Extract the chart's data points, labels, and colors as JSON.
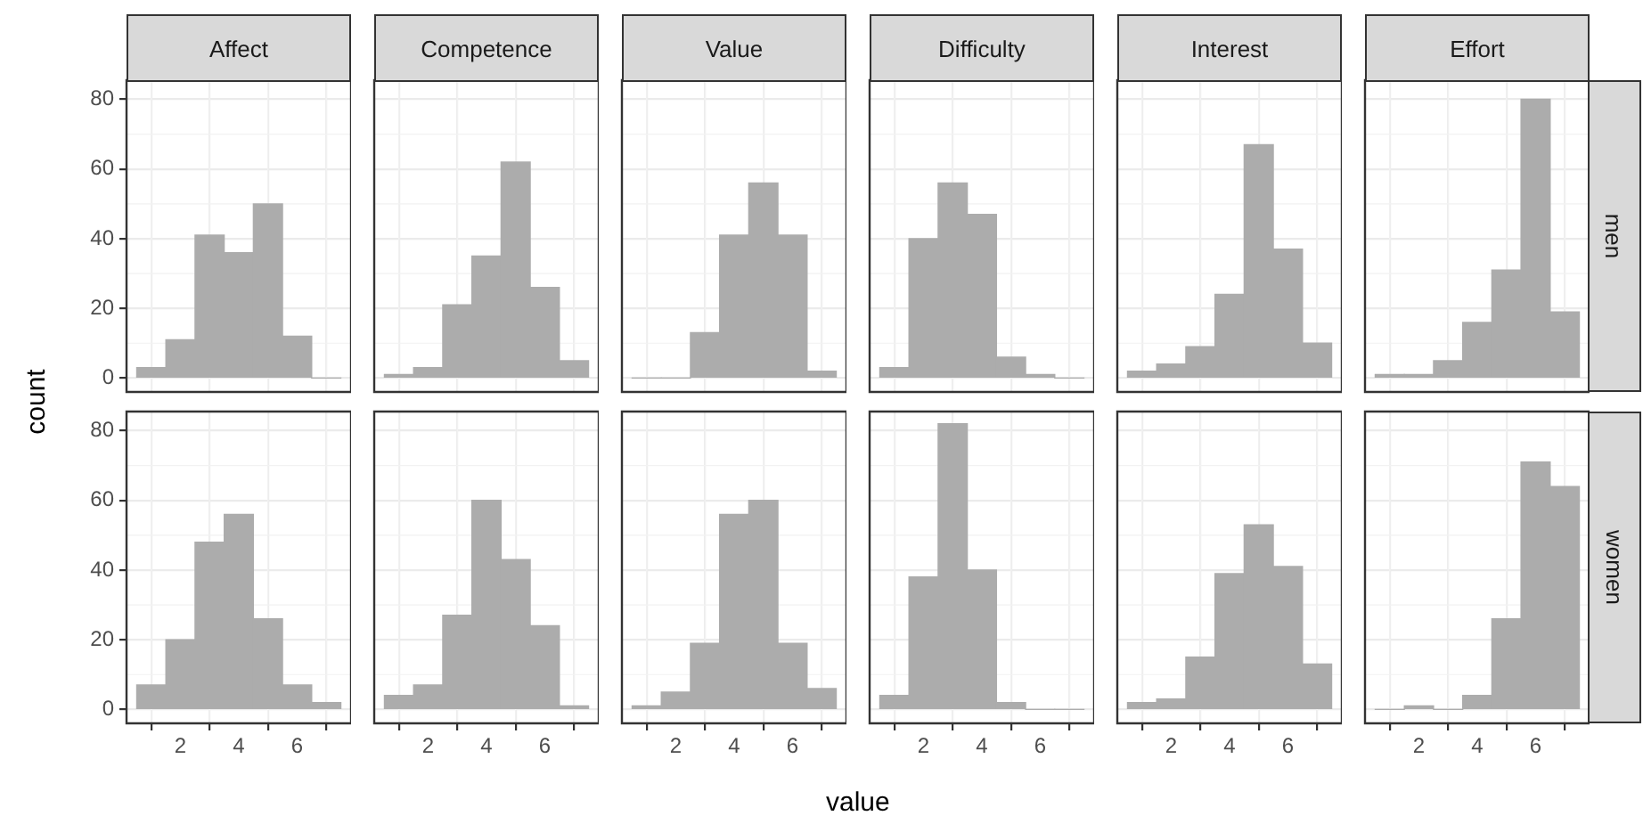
{
  "chart_data": [
    {
      "type": "histogram",
      "title": "Affect",
      "ylabel": "count",
      "bins": [
        0.5,
        1.5,
        2.5,
        3.5,
        4.5,
        5.5,
        6.5,
        7.5
      ],
      "values": [
        3,
        11,
        41,
        36,
        50,
        12,
        0
      ],
      "color": "#acacac",
      "xlim": [
        0.15,
        7.85
      ],
      "xticks": [
        2,
        4,
        6
      ],
      "ylim": [
        -4,
        85.5
      ],
      "yticks": [
        0,
        20,
        40,
        60,
        80
      ],
      "grid": true,
      "legend": false,
      "tick_labels": "y"
    },
    {
      "type": "histogram",
      "title": "Competence",
      "bins": [
        0.5,
        1.5,
        2.5,
        3.5,
        4.5,
        5.5,
        6.5,
        7.5
      ],
      "values": [
        1,
        3,
        21,
        35,
        62,
        26,
        5
      ],
      "color": "#acacac",
      "xlim": [
        0.15,
        7.85
      ],
      "xticks": [
        2,
        4,
        6
      ],
      "ylim": [
        -4,
        85.5
      ],
      "yticks": [
        0,
        20,
        40,
        60,
        80
      ],
      "grid": true,
      "legend": false,
      "tick_labels": false
    },
    {
      "type": "histogram",
      "title": "Value",
      "bins": [
        0.5,
        1.5,
        2.5,
        3.5,
        4.5,
        5.5,
        6.5,
        7.5
      ],
      "values": [
        0,
        0,
        13,
        41,
        56,
        41,
        2
      ],
      "color": "#acacac",
      "xlim": [
        0.15,
        7.85
      ],
      "xticks": [
        2,
        4,
        6
      ],
      "ylim": [
        -4,
        85.5
      ],
      "yticks": [
        0,
        20,
        40,
        60,
        80
      ],
      "grid": true,
      "legend": false,
      "tick_labels": false
    },
    {
      "type": "histogram",
      "title": "Difficulty",
      "bins": [
        0.5,
        1.5,
        2.5,
        3.5,
        4.5,
        5.5,
        6.5,
        7.5
      ],
      "values": [
        3,
        40,
        56,
        47,
        6,
        1,
        0
      ],
      "color": "#acacac",
      "xlim": [
        0.15,
        7.85
      ],
      "xticks": [
        2,
        4,
        6
      ],
      "ylim": [
        -4,
        85.5
      ],
      "yticks": [
        0,
        20,
        40,
        60,
        80
      ],
      "grid": true,
      "legend": false,
      "tick_labels": false
    },
    {
      "type": "histogram",
      "title": "Interest",
      "bins": [
        0.5,
        1.5,
        2.5,
        3.5,
        4.5,
        5.5,
        6.5,
        7.5
      ],
      "values": [
        2,
        4,
        9,
        24,
        67,
        37,
        10
      ],
      "color": "#acacac",
      "xlim": [
        0.15,
        7.85
      ],
      "xticks": [
        2,
        4,
        6
      ],
      "ylim": [
        -4,
        85.5
      ],
      "yticks": [
        0,
        20,
        40,
        60,
        80
      ],
      "grid": true,
      "legend": false,
      "tick_labels": false
    },
    {
      "type": "histogram",
      "title": "Effort",
      "y2label": "men",
      "bins": [
        0.5,
        1.5,
        2.5,
        3.5,
        4.5,
        5.5,
        6.5,
        7.5
      ],
      "values": [
        1,
        1,
        5,
        16,
        31,
        80,
        19
      ],
      "color": "#acacac",
      "xlim": [
        0.15,
        7.85
      ],
      "xticks": [
        2,
        4,
        6
      ],
      "ylim": [
        -4,
        85.5
      ],
      "yticks": [
        0,
        20,
        40,
        60,
        80
      ],
      "grid": true,
      "legend": false,
      "tick_labels": false
    },
    {
      "type": "histogram",
      "bins": [
        0.5,
        1.5,
        2.5,
        3.5,
        4.5,
        5.5,
        6.5,
        7.5
      ],
      "values": [
        7,
        20,
        48,
        56,
        26,
        7,
        2
      ],
      "color": "#acacac",
      "xlim": [
        0.15,
        7.85
      ],
      "xticks": [
        2,
        4,
        6
      ],
      "ylim": [
        -4,
        85.5
      ],
      "yticks": [
        0,
        20,
        40,
        60,
        80
      ],
      "grid": true,
      "legend": false
    },
    {
      "type": "histogram",
      "bins": [
        0.5,
        1.5,
        2.5,
        3.5,
        4.5,
        5.5,
        6.5,
        7.5
      ],
      "values": [
        4,
        7,
        27,
        60,
        43,
        24,
        1
      ],
      "color": "#acacac",
      "xlim": [
        0.15,
        7.85
      ],
      "xticks": [
        2,
        4,
        6
      ],
      "ylim": [
        -4,
        85.5
      ],
      "yticks": [
        0,
        20,
        40,
        60,
        80
      ],
      "grid": true,
      "legend": false,
      "tick_labels": "x"
    },
    {
      "type": "histogram",
      "xlabel": "value",
      "bins": [
        0.5,
        1.5,
        2.5,
        3.5,
        4.5,
        5.5,
        6.5,
        7.5
      ],
      "values": [
        1,
        5,
        19,
        56,
        60,
        19,
        6
      ],
      "color": "#acacac",
      "xlim": [
        0.15,
        7.85
      ],
      "xticks": [
        2,
        4,
        6
      ],
      "ylim": [
        -4,
        85.5
      ],
      "yticks": [
        0,
        20,
        40,
        60,
        80
      ],
      "grid": true,
      "legend": false,
      "tick_labels": "x"
    },
    {
      "type": "histogram",
      "bins": [
        0.5,
        1.5,
        2.5,
        3.5,
        4.5,
        5.5,
        6.5,
        7.5
      ],
      "values": [
        4,
        38,
        82,
        40,
        2,
        0,
        0
      ],
      "color": "#acacac",
      "xlim": [
        0.15,
        7.85
      ],
      "xticks": [
        2,
        4,
        6
      ],
      "ylim": [
        -4,
        85.5
      ],
      "yticks": [
        0,
        20,
        40,
        60,
        80
      ],
      "grid": true,
      "legend": false,
      "tick_labels": "x"
    },
    {
      "type": "histogram",
      "bins": [
        0.5,
        1.5,
        2.5,
        3.5,
        4.5,
        5.5,
        6.5,
        7.5
      ],
      "values": [
        2,
        3,
        15,
        39,
        53,
        41,
        13
      ],
      "color": "#acacac",
      "xlim": [
        0.15,
        7.85
      ],
      "xticks": [
        2,
        4,
        6
      ],
      "ylim": [
        -4,
        85.5
      ],
      "yticks": [
        0,
        20,
        40,
        60,
        80
      ],
      "grid": true,
      "legend": false,
      "tick_labels": "x"
    },
    {
      "type": "histogram",
      "y2label": "women",
      "bins": [
        0.5,
        1.5,
        2.5,
        3.5,
        4.5,
        5.5,
        6.5,
        7.5
      ],
      "values": [
        0,
        1,
        0,
        4,
        26,
        71,
        64
      ],
      "color": "#acacac",
      "xlim": [
        0.15,
        7.85
      ],
      "xticks": [
        2,
        4,
        6
      ],
      "ylim": [
        -4,
        85.5
      ],
      "yticks": [
        0,
        20,
        40,
        60,
        80
      ],
      "grid": true,
      "legend": false,
      "tick_labels": "x"
    }
  ]
}
